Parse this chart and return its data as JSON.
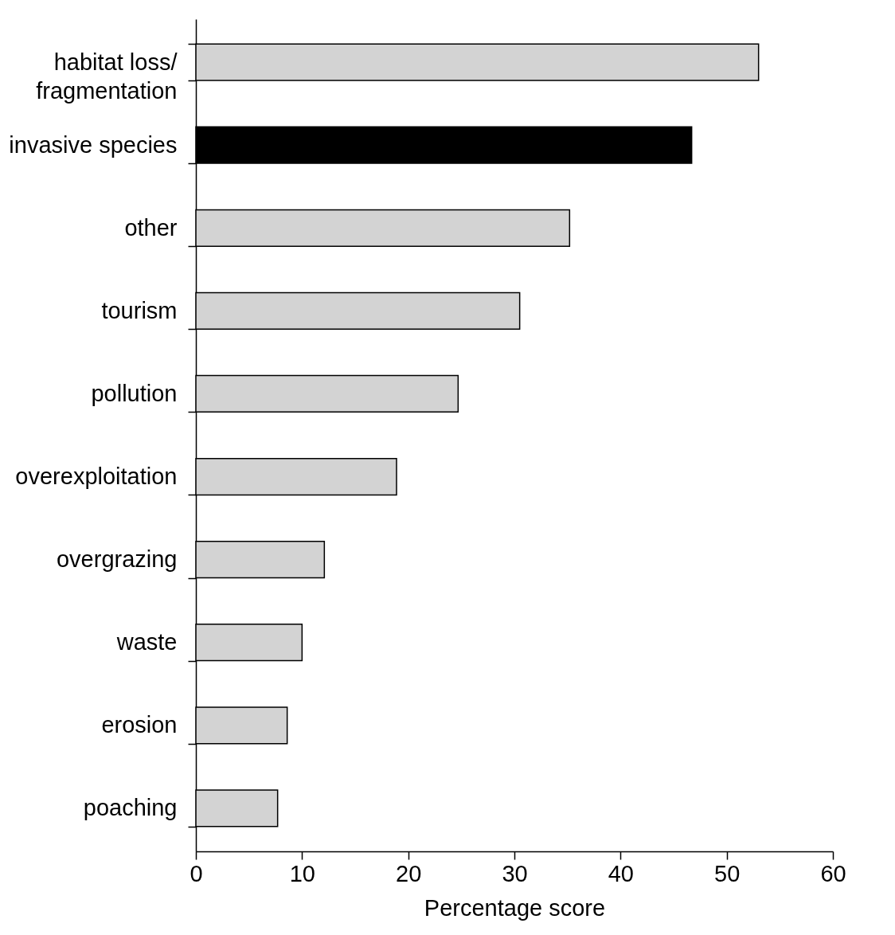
{
  "chart_data": {
    "type": "bar",
    "orientation": "horizontal",
    "xlabel": "Percentage score",
    "categories": [
      "habitat loss/ fragmentation",
      "invasive species",
      "other",
      "tourism",
      "pollution",
      "overexploitation",
      "overgrazing",
      "waste",
      "erosion",
      "poaching"
    ],
    "values": [
      53,
      46.7,
      35.2,
      30.5,
      24.7,
      18.9,
      12.1,
      10,
      8.6,
      7.7
    ],
    "colors": [
      "#d3d3d3",
      "#000000",
      "#d3d3d3",
      "#d3d3d3",
      "#d3d3d3",
      "#d3d3d3",
      "#d3d3d3",
      "#d3d3d3",
      "#d3d3d3",
      "#d3d3d3"
    ],
    "xlim": [
      0,
      60
    ],
    "xticks": [
      0,
      10,
      20,
      30,
      40,
      50,
      60
    ],
    "grid": false
  }
}
